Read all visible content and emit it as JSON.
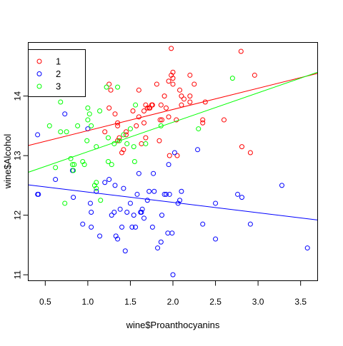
{
  "chart_data": {
    "type": "scatter",
    "title": "",
    "xlabel": "wine$Proanthocyanins",
    "ylabel": "wine$Alcohol",
    "xlim": [
      0.3,
      3.7
    ],
    "ylim": [
      10.9,
      14.9
    ],
    "x_ticks": [
      0.5,
      1.0,
      1.5,
      2.0,
      2.5,
      3.0,
      3.5
    ],
    "x_tick_labels": [
      "0.5",
      "1.0",
      "1.5",
      "2.0",
      "2.5",
      "3.0",
      "3.5"
    ],
    "y_ticks": [
      11,
      12,
      13,
      14
    ],
    "y_tick_labels": [
      "11",
      "12",
      "13",
      "14"
    ],
    "grid": false,
    "legend_position": "top-left",
    "series": [
      {
        "name": "1",
        "color": "#ff0000",
        "points": [
          [
            1.25,
            14.2
          ],
          [
            1.37,
            13.3
          ],
          [
            1.27,
            14.1
          ],
          [
            1.98,
            14.35
          ],
          [
            1.2,
            13.4
          ],
          [
            1.35,
            13.55
          ],
          [
            1.81,
            14.2
          ],
          [
            2.0,
            14.4
          ],
          [
            2.25,
            14.2
          ],
          [
            2.2,
            13.9
          ],
          [
            1.45,
            13.35
          ],
          [
            2.35,
            13.6
          ],
          [
            1.63,
            13.2
          ],
          [
            1.9,
            14.0
          ],
          [
            2.1,
            13.85
          ],
          [
            1.53,
            13.75
          ],
          [
            1.98,
            14.8
          ],
          [
            2.0,
            14.3
          ],
          [
            2.38,
            13.9
          ],
          [
            2.8,
            14.75
          ],
          [
            2.6,
            13.6
          ],
          [
            2.2,
            14.35
          ],
          [
            2.05,
            13.0
          ],
          [
            1.6,
            13.65
          ],
          [
            1.85,
            13.6
          ],
          [
            1.35,
            13.5
          ],
          [
            1.68,
            13.85
          ],
          [
            1.96,
            13.0
          ],
          [
            2.0,
            14.2
          ],
          [
            1.92,
            13.8
          ],
          [
            1.57,
            13.5
          ],
          [
            1.76,
            13.85
          ],
          [
            2.35,
            13.55
          ],
          [
            2.1,
            14.0
          ],
          [
            2.13,
            13.95
          ],
          [
            1.72,
            13.8
          ],
          [
            2.81,
            13.15
          ],
          [
            2.91,
            13.05
          ],
          [
            1.66,
            13.75
          ],
          [
            1.75,
            13.85
          ],
          [
            1.86,
            13.85
          ],
          [
            2.96,
            14.35
          ],
          [
            1.42,
            13.1
          ],
          [
            1.66,
            13.55
          ],
          [
            1.45,
            13.4
          ],
          [
            1.35,
            13.25
          ],
          [
            2.04,
            13.6
          ],
          [
            1.73,
            13.8
          ],
          [
            2.08,
            14.1
          ],
          [
            1.87,
            13.6
          ],
          [
            1.32,
            13.7
          ],
          [
            1.95,
            13.65
          ],
          [
            1.68,
            13.3
          ],
          [
            1.84,
            13.25
          ],
          [
            1.4,
            13.05
          ],
          [
            1.25,
            13.8
          ],
          [
            1.6,
            14.1
          ],
          [
            1.95,
            14.25
          ],
          [
            2.2,
            14.0
          ],
          [
            1.7,
            13.8
          ]
        ]
      },
      {
        "name": "2",
        "color": "#0000ff",
        "points": [
          [
            0.41,
            12.35
          ],
          [
            0.42,
            12.35
          ],
          [
            0.62,
            12.6
          ],
          [
            0.73,
            13.7
          ],
          [
            0.82,
            12.75
          ],
          [
            0.83,
            12.3
          ],
          [
            0.41,
            13.35
          ],
          [
            0.94,
            11.85
          ],
          [
            1.0,
            13.45
          ],
          [
            1.03,
            12.2
          ],
          [
            1.04,
            12.05
          ],
          [
            1.04,
            11.8
          ],
          [
            1.1,
            12.4
          ],
          [
            1.14,
            11.65
          ],
          [
            1.2,
            12.55
          ],
          [
            1.25,
            12.6
          ],
          [
            1.31,
            12.05
          ],
          [
            1.32,
            12.5
          ],
          [
            1.33,
            11.65
          ],
          [
            1.35,
            11.6
          ],
          [
            1.38,
            12.1
          ],
          [
            1.4,
            11.8
          ],
          [
            1.42,
            12.45
          ],
          [
            1.44,
            11.4
          ],
          [
            1.46,
            12.05
          ],
          [
            1.5,
            12.2
          ],
          [
            1.52,
            11.8
          ],
          [
            1.54,
            12.0
          ],
          [
            1.56,
            11.8
          ],
          [
            1.58,
            12.35
          ],
          [
            1.6,
            12.7
          ],
          [
            1.62,
            12.05
          ],
          [
            1.63,
            12.05
          ],
          [
            1.64,
            12.1
          ],
          [
            1.66,
            11.95
          ],
          [
            1.7,
            12.25
          ],
          [
            1.72,
            12.4
          ],
          [
            1.76,
            11.8
          ],
          [
            1.77,
            12.7
          ],
          [
            1.78,
            12.4
          ],
          [
            1.82,
            11.45
          ],
          [
            1.86,
            11.55
          ],
          [
            1.87,
            12.0
          ],
          [
            1.9,
            12.35
          ],
          [
            1.92,
            12.35
          ],
          [
            1.94,
            11.7
          ],
          [
            1.95,
            12.85
          ],
          [
            1.96,
            12.35
          ],
          [
            1.99,
            11.7
          ],
          [
            2.0,
            11.0
          ],
          [
            2.02,
            13.05
          ],
          [
            2.06,
            12.2
          ],
          [
            2.08,
            12.25
          ],
          [
            2.1,
            12.4
          ],
          [
            2.29,
            13.1
          ],
          [
            2.35,
            11.85
          ],
          [
            2.5,
            12.2
          ],
          [
            2.5,
            11.6
          ],
          [
            2.76,
            12.35
          ],
          [
            2.81,
            12.3
          ],
          [
            2.91,
            11.85
          ],
          [
            3.28,
            12.5
          ],
          [
            3.58,
            11.45
          ],
          [
            1.28,
            12.0
          ]
        ]
      },
      {
        "name": "3",
        "color": "#00ff00",
        "points": [
          [
            0.55,
            13.5
          ],
          [
            0.62,
            12.8
          ],
          [
            0.68,
            13.9
          ],
          [
            0.73,
            12.2
          ],
          [
            0.75,
            13.4
          ],
          [
            0.8,
            12.95
          ],
          [
            0.82,
            12.85
          ],
          [
            0.83,
            12.75
          ],
          [
            0.84,
            12.85
          ],
          [
            0.88,
            13.5
          ],
          [
            0.94,
            12.9
          ],
          [
            0.96,
            12.85
          ],
          [
            0.99,
            13.25
          ],
          [
            1.0,
            13.8
          ],
          [
            1.02,
            13.7
          ],
          [
            1.04,
            13.5
          ],
          [
            1.08,
            12.5
          ],
          [
            1.1,
            13.15
          ],
          [
            1.1,
            12.45
          ],
          [
            1.14,
            13.75
          ],
          [
            1.15,
            12.25
          ],
          [
            1.22,
            14.15
          ],
          [
            1.24,
            13.3
          ],
          [
            1.24,
            12.9
          ],
          [
            1.28,
            12.85
          ],
          [
            1.31,
            13.2
          ],
          [
            1.35,
            14.15
          ],
          [
            1.37,
            13.25
          ],
          [
            1.42,
            13.35
          ],
          [
            1.46,
            13.2
          ],
          [
            1.5,
            13.45
          ],
          [
            1.54,
            13.15
          ],
          [
            1.55,
            12.9
          ],
          [
            1.56,
            13.85
          ],
          [
            1.68,
            13.2
          ],
          [
            1.86,
            13.5
          ],
          [
            2.3,
            13.45
          ],
          [
            2.7,
            14.3
          ],
          [
            0.68,
            13.4
          ],
          [
            1.0,
            13.6
          ],
          [
            1.1,
            12.55
          ]
        ]
      }
    ],
    "lines": [
      {
        "series": "1",
        "color": "#ff0000",
        "x": [
          0.3,
          3.7
        ],
        "y": [
          13.17,
          14.38
        ]
      },
      {
        "series": "2",
        "color": "#0000ff",
        "x": [
          0.3,
          3.7
        ],
        "y": [
          12.51,
          11.92
        ]
      },
      {
        "series": "3",
        "color": "#00ff00",
        "x": [
          0.3,
          3.7
        ],
        "y": [
          12.72,
          14.4
        ]
      }
    ]
  }
}
